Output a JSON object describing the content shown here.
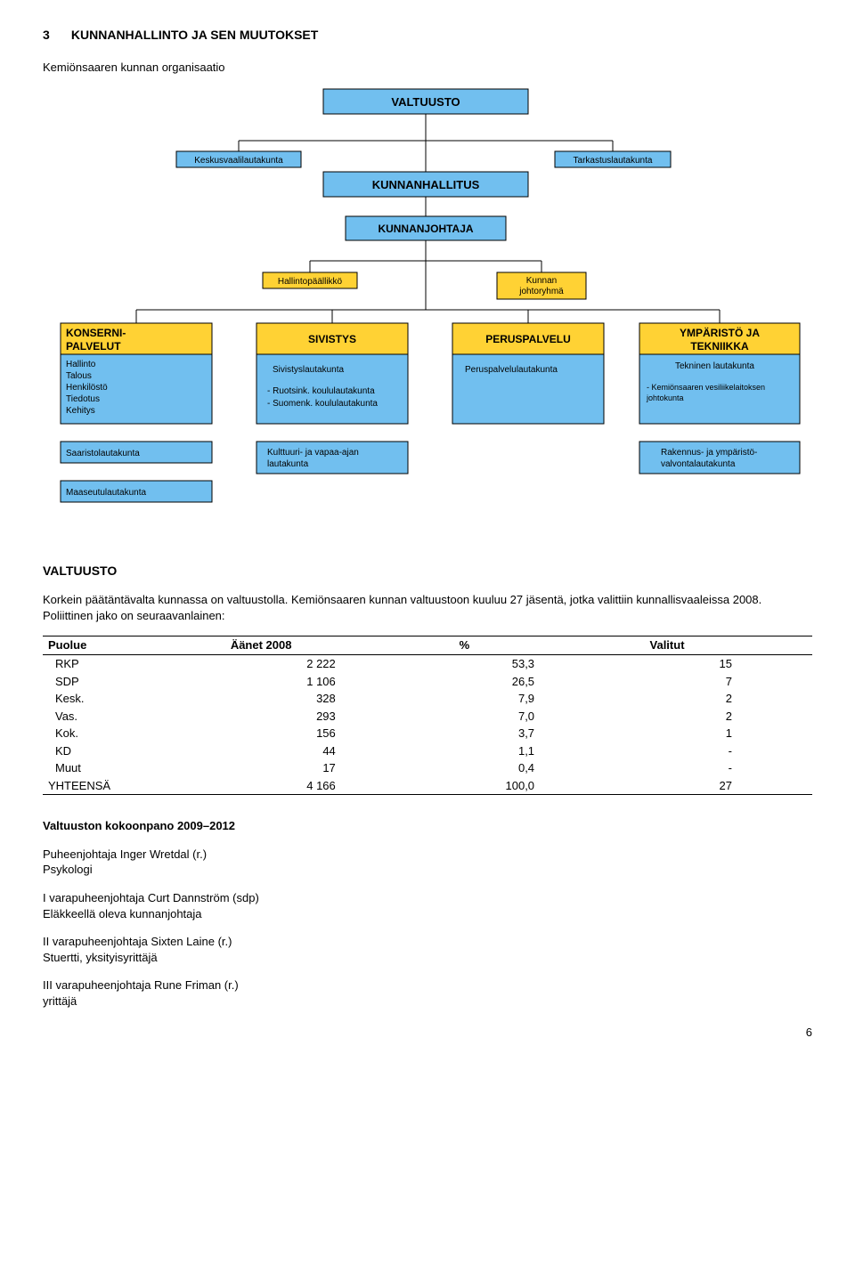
{
  "heading": {
    "number": "3",
    "title": "KUNNANHALLINTO JA SEN MUUTOKSET"
  },
  "intro": "Kemiönsaaren kunnan organisaatio",
  "chart": {
    "colors": {
      "blue": "#71bfef",
      "yellow": "#ffd234",
      "line": "#000000",
      "bg": "#ffffff"
    },
    "boxes": {
      "valtuusto": "VALTUUSTO",
      "keskusvaali": "Keskusvaalilautakunta",
      "tarkastus": "Tarkastuslautakunta",
      "hallitus": "KUNNANHALLITUS",
      "johtaja": "KUNNANJOHTAJA",
      "hallintop": "Hallintopäällikkö",
      "johtoryhma_l1": "Kunnan",
      "johtoryhma_l2": "johtoryhmä",
      "konserni_title_l1": "KONSERNI-",
      "konserni_title_l2": "PALVELUT",
      "konserni_items": [
        "Hallinto",
        "Talous",
        "Henkilöstö",
        "Tiedotus",
        "Kehitys"
      ],
      "saaristo": "Saaristolautakunta",
      "maaseutu": "Maaseutulautakunta",
      "sivistys_title": "SIVISTYS",
      "sivistys_items": [
        "Sivistyslautakunta",
        "- Ruotsink. koululautakunta",
        "- Suomenk. koululautakunta"
      ],
      "kulttuuri_l1": "Kulttuuri- ja vapaa-ajan",
      "kulttuuri_l2": "lautakunta",
      "perus_title": "PERUSPALVELU",
      "perus_item": "Peruspalvelulautakunta",
      "ymp_title_l1": "YMPÄRISTÖ JA",
      "ymp_title_l2": "TEKNIIKKA",
      "ymp_items_l1": "Tekninen lautakunta",
      "ymp_items_l2a": "- Kemiönsaaren vesiliikelaitoksen",
      "ymp_items_l2b": "  johtokunta",
      "ymp_items_l3a": "Rakennus- ja ympäristö-",
      "ymp_items_l3b": "valvontalautakunta"
    }
  },
  "valtuusto_title": "VALTUUSTO",
  "valtuusto_para": "Korkein päätäntävalta kunnassa on valtuustolla. Kemiönsaaren kunnan valtuustoon kuuluu 27 jäsentä, jotka valittiin kunnallisvaaleissa 2008. Poliittinen jako on seuraavanlainen:",
  "votes": {
    "headers": [
      "Puolue",
      "Äänet 2008",
      "%",
      "Valitut"
    ],
    "rows": [
      {
        "party": "RKP",
        "votes": "2 222",
        "pct": "53,3",
        "seats": "15"
      },
      {
        "party": "SDP",
        "votes": "1 106",
        "pct": "26,5",
        "seats": "7"
      },
      {
        "party": "Kesk.",
        "votes": "328",
        "pct": "7,9",
        "seats": "2"
      },
      {
        "party": "Vas.",
        "votes": "293",
        "pct": "7,0",
        "seats": "2"
      },
      {
        "party": "Kok.",
        "votes": "156",
        "pct": "3,7",
        "seats": "1"
      },
      {
        "party": "KD",
        "votes": "44",
        "pct": "1,1",
        "seats": "-"
      },
      {
        "party": "Muut",
        "votes": "17",
        "pct": "0,4",
        "seats": "-"
      }
    ],
    "total": {
      "label": "YHTEENSÄ",
      "votes": "4 166",
      "pct": "100,0",
      "seats": "27"
    }
  },
  "kokoonpano_title": "Valtuuston  kokoonpano 2009–2012",
  "chair": {
    "l1": "Puheenjohtaja Inger Wretdal (r.)",
    "l2": "Psykologi"
  },
  "vc1": {
    "l1": "I varapuheenjohtaja Curt Dannström (sdp)",
    "l2": "Eläkkeellä oleva kunnanjohtaja"
  },
  "vc2": {
    "l1": "II varapuheenjohtaja Sixten Laine (r.)",
    "l2": "Stuertti, yksityisyrittäjä"
  },
  "vc3": {
    "l1": "III varapuheenjohtaja Rune Friman (r.)",
    "l2": "yrittäjä"
  },
  "page_number": "6"
}
